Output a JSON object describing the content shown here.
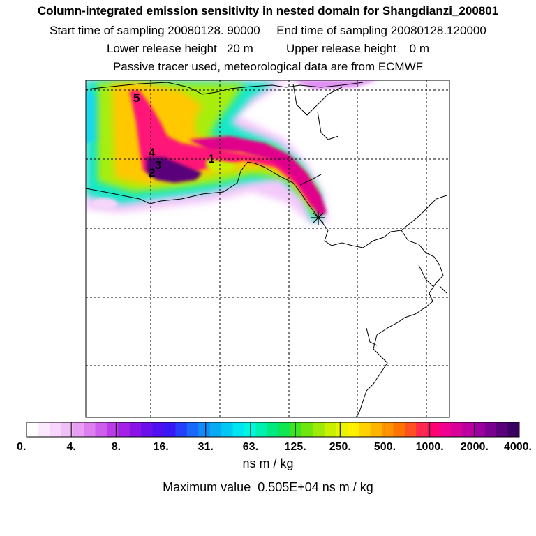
{
  "header": {
    "title": "Column-integrated emission sensitivity in nested domain for Shangdianzi_200801",
    "line2": "Start time of sampling 20080128. 90000     End time of sampling 20080128.120000",
    "line3": "Lower release height   20 m          Upper release height    0 m",
    "line4": "Passive tracer used, meteorological data are from ECMWF"
  },
  "map": {
    "markers": [
      "1",
      "2",
      "3",
      "4",
      "5"
    ],
    "receptor_icon": "star-cross-icon"
  },
  "colorbar": {
    "labels": [
      "0.",
      "4.",
      "8.",
      "16.",
      "31.",
      "63.",
      "125.",
      "250.",
      "500.",
      "1000.",
      "2000.",
      "4000."
    ],
    "units": "ns m / kg",
    "maximum": "Maximum value  0.505E+04 ns m / kg",
    "colors": [
      "#ffffff",
      "#fbeafd",
      "#f7d6fb",
      "#f0bff7",
      "#e89ff3",
      "#dd80ef",
      "#cd5fec",
      "#bb3de9",
      "#a422e8",
      "#8a14e8",
      "#6c10eb",
      "#5010f0",
      "#3818f5",
      "#2440fa",
      "#1868fa",
      "#108cf8",
      "#08aaf5",
      "#00c8f3",
      "#00e6f0",
      "#00f6e0",
      "#00f0b0",
      "#00ea80",
      "#10e650",
      "#40e420",
      "#70e610",
      "#a0ea08",
      "#c8f000",
      "#e8f400",
      "#fff000",
      "#ffd200",
      "#ffb400",
      "#ff9400",
      "#ff7400",
      "#ff5020",
      "#ff2850",
      "#ff0070",
      "#f0008c",
      "#d80098",
      "#bc00a0",
      "#9c00a0",
      "#7c0090",
      "#5a007a",
      "#3a0060"
    ]
  }
}
